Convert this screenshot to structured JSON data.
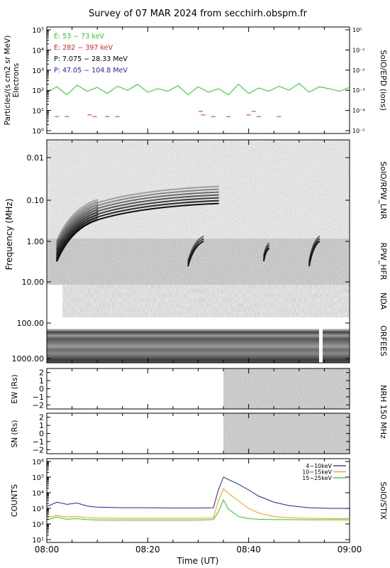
{
  "title": "Survey of 07 MAR 2024 from secchirh.obspm.fr",
  "panels": {
    "epd": {
      "ylabel_left": "Particles/(s cm2 sr MeV)",
      "ylabel_left2": "Electrons",
      "ylabel_right": "SolO/EPD (ions)",
      "left_ticks": [
        "10⁰",
        "10¹",
        "10²",
        "10³",
        "10⁴",
        "10⁵"
      ],
      "right_ticks": [
        "10⁻⁵",
        "10⁻⁴",
        "10⁻³",
        "10⁻²",
        "10⁻¹",
        "10⁰"
      ],
      "legend": [
        {
          "text": "E: 53 − 73 keV",
          "color": "#22cc22"
        },
        {
          "text": "E: 282 − 397 keV",
          "color": "#dd2222"
        },
        {
          "text": "P: 7.075 − 28.33 MeV",
          "color": "#000000"
        },
        {
          "text": "P: 47.05 − 104.8 MeV",
          "color": "#1f1fb4"
        }
      ]
    },
    "spectrogram": {
      "ylabel": "Frequency (MHz)",
      "freq_ticks": [
        "0.01",
        "0.10",
        "1.00",
        "10.00",
        "100.00",
        "1000.00"
      ],
      "labels": [
        "SolO/RPW_LNR",
        "RPW_HFR",
        "NDA",
        "ORFEES"
      ]
    },
    "nrh_ew": {
      "ylabel": "EW (Rs)",
      "ticks": [
        "2",
        "1",
        "0",
        "−1",
        "−2"
      ]
    },
    "nrh_sn": {
      "ylabel": "SN (Rs)",
      "ticks": [
        "2",
        "1",
        "0",
        "−1",
        "−2"
      ]
    },
    "nrh_label": "NRH 150 MHz",
    "stix": {
      "ylabel": "COUNTS",
      "ylabel_right": "SolO/STIX",
      "ticks": [
        "10¹",
        "10²",
        "10³",
        "10⁴",
        "10⁵",
        "10⁶"
      ]
    }
  },
  "xaxis": {
    "label": "Time (UT)",
    "ticks": [
      "08:00",
      "08:20",
      "08:40",
      "09:00"
    ]
  },
  "chart_data": [
    {
      "type": "line",
      "name": "SolO/EPD",
      "x_unit": "minutes after 08:00",
      "xlim": [
        0,
        60
      ],
      "y_scale": "log",
      "ylim": [
        1,
        100000
      ],
      "series": [
        {
          "name": "E: 53 − 73 keV",
          "color": "#22cc22",
          "x": [
            0,
            2,
            4,
            6,
            8,
            10,
            12,
            14,
            16,
            18,
            20,
            22,
            24,
            26,
            28,
            30,
            32,
            34,
            36,
            38,
            40,
            42,
            44,
            46,
            48,
            50,
            52,
            54,
            56,
            58,
            60
          ],
          "values": [
            80,
            150,
            60,
            180,
            90,
            140,
            70,
            160,
            100,
            200,
            80,
            120,
            90,
            170,
            60,
            150,
            80,
            120,
            60,
            200,
            70,
            130,
            90,
            160,
            100,
            220,
            80,
            150,
            120,
            90,
            140
          ]
        },
        {
          "name": "E: 282 − 397 keV",
          "color": "#dd2222",
          "x": [
            2,
            4,
            8.5,
            9.5,
            12,
            14,
            30.5,
            31,
            33,
            36,
            40,
            41,
            42,
            46
          ],
          "values": [
            5,
            5,
            6,
            5,
            5,
            5,
            9,
            6,
            5,
            5,
            6,
            9,
            5,
            5
          ]
        }
      ]
    },
    {
      "type": "heatmap",
      "name": "radio dynamic spectrum",
      "x_unit": "minutes after 08:00",
      "xlim": [
        0,
        60
      ],
      "y_scale": "log",
      "ylim_MHz": [
        0.005,
        1000
      ],
      "instruments": [
        "SolO/RPW_LNR",
        "RPW_HFR",
        "NDA",
        "ORFEES"
      ],
      "bursts": [
        {
          "start_min": 2,
          "end_min": 10,
          "from_MHz": 3,
          "to_MHz": 0.3
        },
        {
          "start_min": 10,
          "end_min": 34,
          "from_MHz": 0.3,
          "to_MHz": 0.12
        },
        {
          "start_min": 28,
          "end_min": 31,
          "from_MHz": 4,
          "to_MHz": 1
        },
        {
          "start_min": 43,
          "end_min": 44,
          "from_MHz": 3,
          "to_MHz": 1.5
        },
        {
          "start_min": 52,
          "end_min": 54,
          "from_MHz": 4,
          "to_MHz": 1
        }
      ]
    },
    {
      "type": "heatmap",
      "name": "NRH 150 MHz",
      "x_unit": "minutes after 08:00",
      "xlim": [
        0,
        60
      ],
      "data_start_min": 35,
      "ylim": [
        -2.5,
        2.5
      ]
    },
    {
      "type": "line",
      "name": "SolO/STIX",
      "x_unit": "minutes after 08:00",
      "xlim": [
        0,
        60
      ],
      "y_scale": "log",
      "ylim": [
        10,
        1000000
      ],
      "series": [
        {
          "name": "4−10keV",
          "color": "#1f1fb4",
          "x": [
            0,
            2,
            4,
            6,
            8,
            10,
            15,
            20,
            25,
            30,
            33,
            34,
            35,
            36,
            38,
            40,
            42,
            45,
            48,
            52,
            56,
            60
          ],
          "values": [
            1300,
            2500,
            1800,
            2200,
            1400,
            1200,
            1100,
            1100,
            1050,
            1050,
            1100,
            15000,
            100000,
            70000,
            35000,
            15000,
            6000,
            2500,
            1500,
            1100,
            1000,
            1000
          ]
        },
        {
          "name": "10−15keV",
          "color": "#ff9900",
          "x": [
            0,
            2,
            4,
            6,
            8,
            10,
            15,
            20,
            25,
            30,
            33,
            34,
            35,
            36,
            38,
            40,
            42,
            45,
            48,
            52,
            56,
            60
          ],
          "values": [
            250,
            350,
            280,
            300,
            250,
            240,
            230,
            230,
            230,
            230,
            240,
            3000,
            18000,
            9000,
            3000,
            1000,
            500,
            300,
            250,
            230,
            220,
            220
          ]
        },
        {
          "name": "15−25keV",
          "color": "#22cc22",
          "x": [
            0,
            2,
            4,
            6,
            8,
            10,
            15,
            20,
            25,
            30,
            33,
            34,
            35,
            36,
            38,
            40,
            42,
            45,
            48,
            52,
            56,
            60
          ],
          "values": [
            180,
            280,
            200,
            220,
            190,
            180,
            180,
            180,
            180,
            180,
            190,
            600,
            3500,
            900,
            300,
            220,
            200,
            190,
            190,
            185,
            185,
            185
          ]
        }
      ]
    }
  ]
}
